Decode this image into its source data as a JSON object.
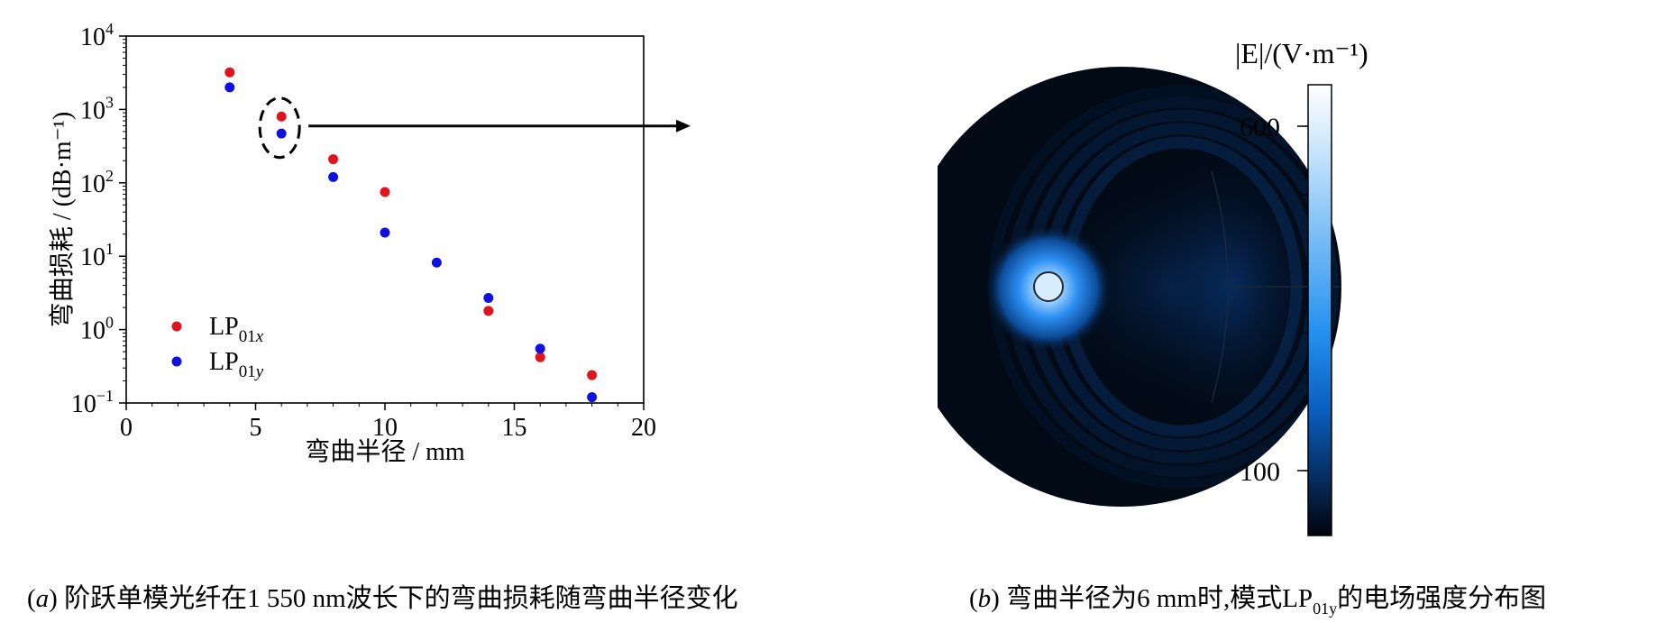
{
  "panel_a": {
    "ylabel": "弯曲损耗 / (dB·m⁻¹)",
    "xlabel": "弯曲半径 / mm",
    "caption_label": "a",
    "caption_text": "阶跃单模光纤在1 550 nm波长下的弯曲损耗随弯曲半径变化"
  },
  "panel_b": {
    "caption_label": "b",
    "caption_pre": "弯曲半径为6 mm时,模式LP",
    "caption_sub": "01y",
    "caption_post": "的电场强度分布图",
    "colorbar_title": "|E|/(V·m⁻¹)",
    "colorbar_ticks": [
      "600",
      "100"
    ]
  },
  "chart_data": [
    {
      "type": "scatter",
      "title": "",
      "xlabel": "弯曲半径 / mm",
      "ylabel": "弯曲损耗 / (dB·m⁻¹)",
      "xlim": [
        0,
        20
      ],
      "ylim": [
        0.1,
        10000
      ],
      "yscale": "log",
      "x_ticks": [
        0,
        5,
        10,
        15,
        20
      ],
      "y_ticks": [
        0.1,
        1,
        10,
        100,
        1000,
        10000
      ],
      "legend_position": "lower-left",
      "series": [
        {
          "name": "LP01x",
          "color": "#e0141e",
          "x": [
            4,
            6,
            8,
            10,
            14,
            16,
            18
          ],
          "y": [
            3200,
            800,
            210,
            75,
            1.8,
            0.42,
            0.24
          ]
        },
        {
          "name": "LP01y",
          "color": "#1010e0",
          "x": [
            4,
            6,
            8,
            10,
            12,
            14,
            16,
            18
          ],
          "y": [
            2000,
            470,
            120,
            21,
            8.2,
            2.7,
            0.55,
            0.12
          ]
        }
      ],
      "annotation": {
        "type": "dashed-ellipse-arrow",
        "x": 6,
        "target": "panel b"
      }
    },
    {
      "type": "heatmap",
      "title": "",
      "colorbar_label": "|E|/(V·m⁻¹)",
      "colorbar_ticks": [
        600,
        100
      ]
    }
  ]
}
